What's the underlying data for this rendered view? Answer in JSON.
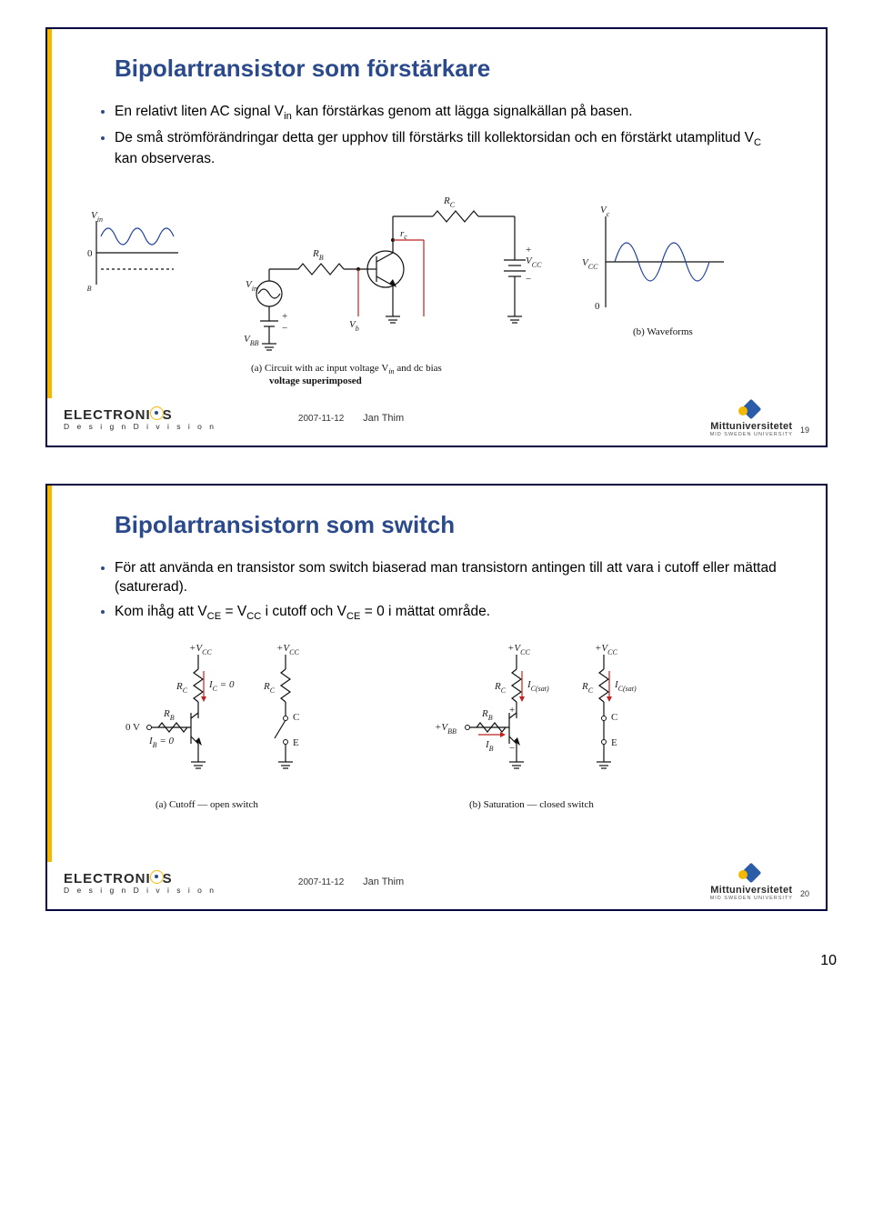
{
  "slides": [
    {
      "title": "Bipolartransistor som förstärkare",
      "bullets": [
        "En relativt liten AC signal V<sub>in</sub> kan förstärkas genom att lägga signalkällan på basen.",
        "De små strömförändringar detta ger upphov till förstärks till kollektorsidan och en förstärkt utamplitud V<sub>C</sub> kan observeras."
      ],
      "captions": {
        "a": "(a) Circuit with ac input voltage V",
        "a_sub": "in",
        "a_tail": " and dc bias",
        "a2": "voltage superimposed",
        "b": "(b) Waveforms"
      },
      "labels": {
        "Vin": "V",
        "Vin_sub": "in",
        "VBB": "V",
        "VBB_sub": "BB",
        "RB": "R",
        "RB_sub": "B",
        "RC": "R",
        "RC_sub": "C",
        "VCC": "V",
        "VCC_sub": "CC",
        "Vb": "V",
        "Vb_sub": "b",
        "Vc": "V",
        "Vc_sub": "c",
        "zero": "0",
        "plus": "+",
        "minus": "−"
      },
      "meta": {
        "date": "2007-11-12",
        "author": "Jan Thim",
        "num": "19"
      }
    },
    {
      "title": "Bipolartransistorn som switch",
      "bullets": [
        "För att använda en transistor som switch biaserad man transistorn antingen till att vara i cutoff eller mättad (saturerad).",
        "Kom ihåg att V<sub>CE</sub> = V<sub>CC</sub> i cutoff och V<sub>CE</sub> = 0 i mättat område."
      ],
      "captions": {
        "a": "(a) Cutoff — open switch",
        "b": "(b) Saturation — closed switch"
      },
      "labels": {
        "pVCC": "+V",
        "pVCC_sub": "CC",
        "RC": "R",
        "RC_sub": "C",
        "RB": "R",
        "RB_sub": "B",
        "IC0": "I",
        "IC0_sub": "C",
        "IC0_eq": " = 0",
        "IB0": "I",
        "IB0_sub": "B",
        "IB0_eq": " = 0",
        "ICsat": "I",
        "ICsat_sub": "C(sat)",
        "IB": "I",
        "IB_sub": "B",
        "zeroV": "0 V",
        "pVBB": "+V",
        "pVBB_sub": "BB",
        "C": "C",
        "E": "E",
        "plus": "+",
        "minus": "−"
      },
      "meta": {
        "date": "2007-11-12",
        "author": "Jan Thim",
        "num": "20"
      }
    }
  ],
  "footer": {
    "brand": "ELECTRONI",
    "brand_tail": "S",
    "division": "D e s i g n   D i v i s i o n",
    "uni": "Mittuniversitetet",
    "uni_tag": "MID SWEDEN UNIVERSITY"
  },
  "page_number": "10",
  "colors": {
    "title": "#2b4a8b",
    "accent": "#f5b800",
    "border": "#000040",
    "red": "#c02020",
    "blue": "#2040a0"
  }
}
